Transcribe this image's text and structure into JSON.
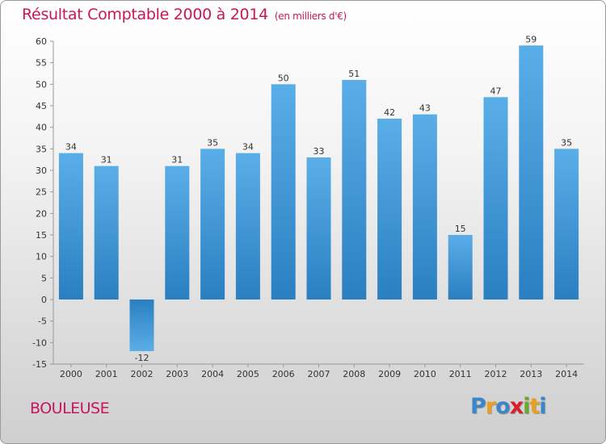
{
  "header": {
    "title": "Résultat Comptable 2000 à 2014",
    "subtitle": "(en milliers d'€)"
  },
  "footer": {
    "commune": "BOULEUSE",
    "logo_letters": [
      {
        "ch": "P",
        "color": "#3a86c8"
      },
      {
        "ch": "r",
        "color": "#e8a020"
      },
      {
        "ch": "o",
        "color": "#3a86c8"
      },
      {
        "ch": "x",
        "color": "#d8202c"
      },
      {
        "ch": "i",
        "color": "#6aa830"
      },
      {
        "ch": "t",
        "color": "#e8a020"
      },
      {
        "ch": "i",
        "color": "#3a86c8"
      }
    ]
  },
  "chart_data": {
    "type": "bar",
    "categories": [
      "2000",
      "2001",
      "2002",
      "2003",
      "2004",
      "2005",
      "2006",
      "2007",
      "2008",
      "2009",
      "2010",
      "2011",
      "2012",
      "2013",
      "2014"
    ],
    "values": [
      34,
      31,
      -12,
      31,
      35,
      34,
      50,
      33,
      51,
      42,
      43,
      15,
      47,
      59,
      35
    ],
    "data_labels": [
      "34",
      "31",
      "-12",
      "31",
      "35",
      "34",
      "50",
      "33",
      "51",
      "42",
      "43",
      "15",
      "47",
      "59",
      "35"
    ],
    "yticks": [
      "60",
      "55",
      "50",
      "45",
      "40",
      "35",
      "30",
      "25",
      "20",
      "15",
      "10",
      "5",
      "0",
      "-5",
      "-10",
      "-15"
    ],
    "ylim": [
      -15,
      60
    ],
    "grid": false,
    "bar_color": "#3d95d6",
    "title": "Résultat Comptable 2000 à 2014",
    "xlabel": "",
    "ylabel": ""
  }
}
